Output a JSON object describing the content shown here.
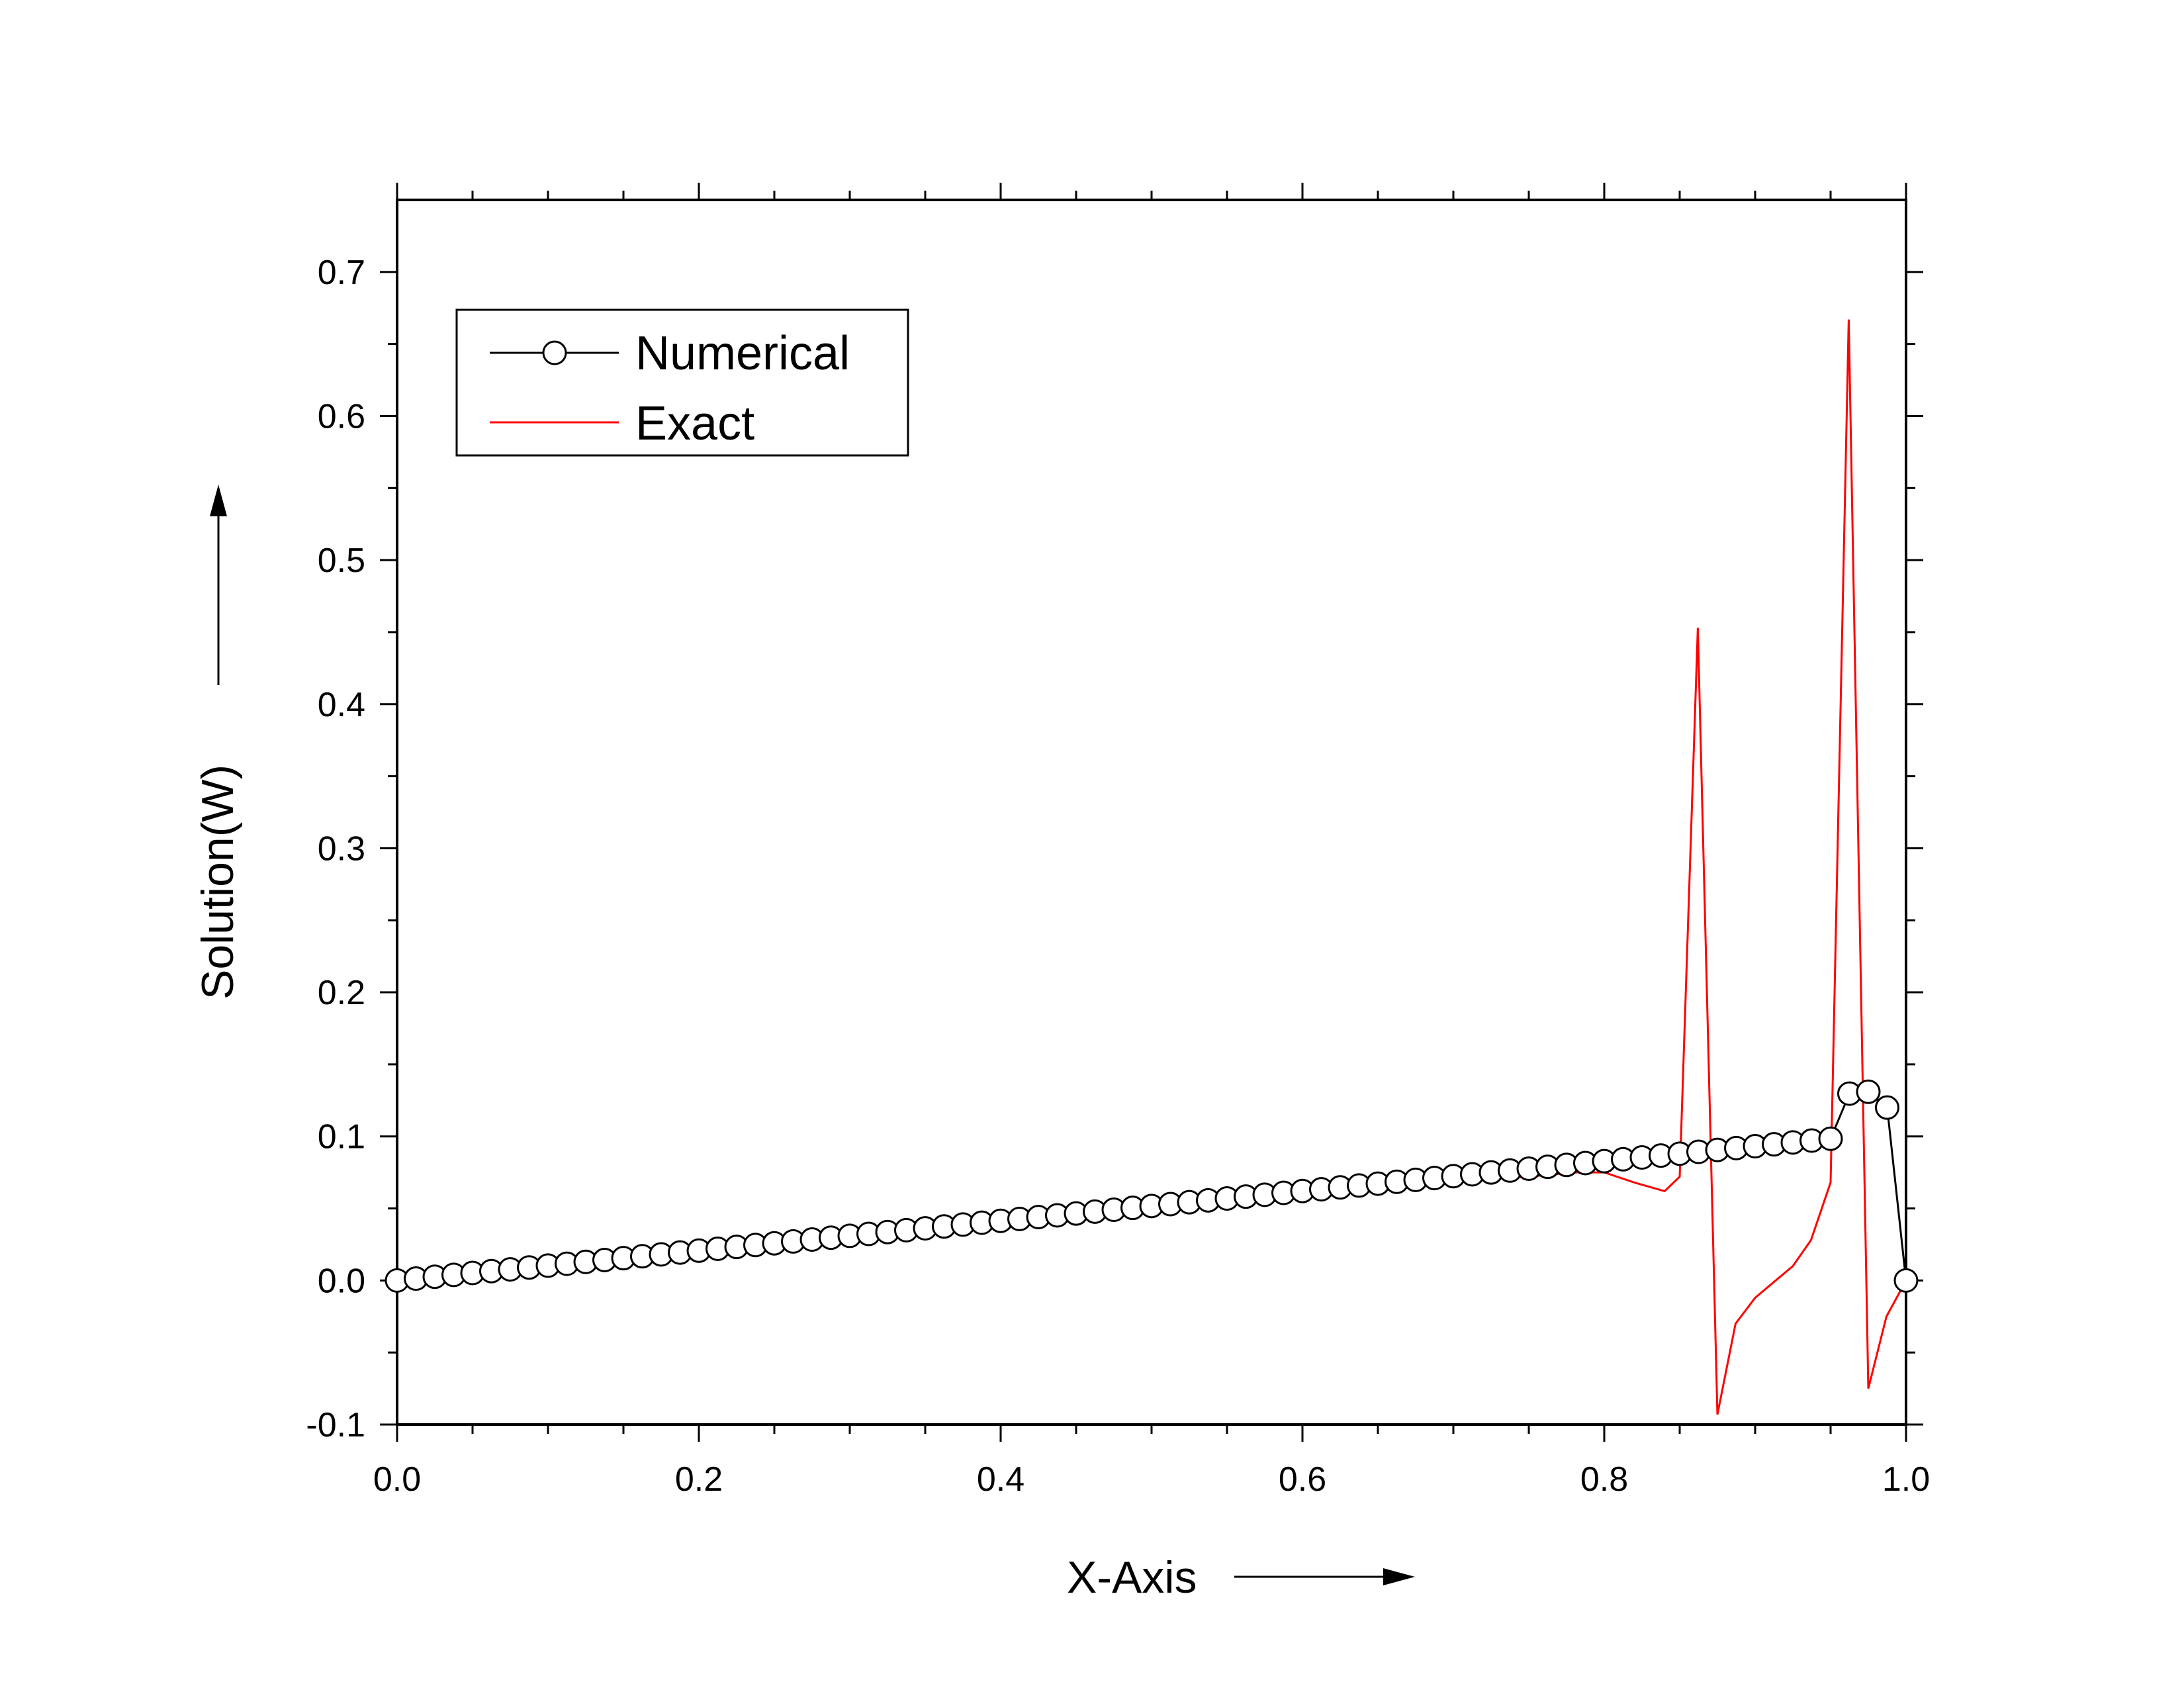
{
  "chart_data": {
    "type": "line",
    "title": "",
    "xlabel": "X-Axis",
    "ylabel": "Solution(W)",
    "xlim": [
      0.0,
      1.0
    ],
    "ylim": [
      -0.1,
      0.75
    ],
    "x_ticks": [
      "0.0",
      "0.2",
      "0.4",
      "0.6",
      "0.8",
      "1.0"
    ],
    "y_ticks": [
      "-0.1",
      "0.0",
      "0.1",
      "0.2",
      "0.3",
      "0.4",
      "0.5",
      "0.6",
      "0.7"
    ],
    "grid": false,
    "legend_position": "top-left",
    "series": [
      {
        "name": "Numerical",
        "color": "#000000",
        "marker": "open-circle",
        "x": [
          0.0,
          0.0125,
          0.025,
          0.0375,
          0.05,
          0.0625,
          0.075,
          0.0875,
          0.1,
          0.1125,
          0.125,
          0.1375,
          0.15,
          0.1625,
          0.175,
          0.1875,
          0.2,
          0.2125,
          0.225,
          0.2375,
          0.25,
          0.2625,
          0.275,
          0.2875,
          0.3,
          0.3125,
          0.325,
          0.3375,
          0.35,
          0.3625,
          0.375,
          0.3875,
          0.4,
          0.4125,
          0.425,
          0.4375,
          0.45,
          0.4625,
          0.475,
          0.4875,
          0.5,
          0.5125,
          0.525,
          0.5375,
          0.55,
          0.5625,
          0.575,
          0.5875,
          0.6,
          0.6125,
          0.625,
          0.6375,
          0.65,
          0.6625,
          0.675,
          0.6875,
          0.7,
          0.7125,
          0.725,
          0.7375,
          0.75,
          0.7625,
          0.775,
          0.7875,
          0.8,
          0.8125,
          0.825,
          0.8375,
          0.85,
          0.8625,
          0.875,
          0.8875,
          0.9,
          0.9125,
          0.925,
          0.9375,
          0.95,
          0.9625,
          0.975,
          0.9875,
          1.0
        ],
        "y": [
          0.0,
          0.0013,
          0.0026,
          0.0039,
          0.0052,
          0.0065,
          0.0077,
          0.009,
          0.0103,
          0.0116,
          0.0129,
          0.0142,
          0.0155,
          0.0168,
          0.0181,
          0.0194,
          0.0207,
          0.022,
          0.0233,
          0.0246,
          0.0258,
          0.0271,
          0.0284,
          0.0297,
          0.031,
          0.0323,
          0.0336,
          0.0349,
          0.0362,
          0.0375,
          0.0388,
          0.0401,
          0.0414,
          0.0427,
          0.044,
          0.0452,
          0.0465,
          0.0478,
          0.0491,
          0.0504,
          0.0517,
          0.053,
          0.0543,
          0.0556,
          0.0569,
          0.0582,
          0.0595,
          0.0608,
          0.0621,
          0.0633,
          0.0646,
          0.0659,
          0.0672,
          0.0685,
          0.0698,
          0.0711,
          0.0724,
          0.0737,
          0.075,
          0.0763,
          0.0776,
          0.0789,
          0.0802,
          0.0815,
          0.0828,
          0.0841,
          0.0854,
          0.0867,
          0.088,
          0.0893,
          0.0906,
          0.0919,
          0.0932,
          0.0945,
          0.0958,
          0.0971,
          0.0984,
          0.1297,
          0.131,
          0.12,
          0.0
        ]
      },
      {
        "name": "Exact",
        "color": "#ff0000",
        "marker": "none",
        "x": [
          0.0,
          0.05,
          0.1,
          0.2,
          0.3,
          0.4,
          0.5,
          0.6,
          0.7,
          0.75,
          0.78,
          0.8,
          0.82,
          0.84,
          0.85,
          0.862,
          0.875,
          0.887,
          0.9,
          0.925,
          0.937,
          0.95,
          0.962,
          0.975,
          0.987,
          1.0
        ],
        "y": [
          0.0,
          0.0052,
          0.0103,
          0.0207,
          0.031,
          0.0414,
          0.0517,
          0.0621,
          0.0695,
          0.072,
          0.075,
          0.075,
          0.068,
          0.062,
          0.072,
          0.453,
          -0.093,
          -0.03,
          -0.012,
          0.01,
          0.028,
          0.068,
          0.667,
          -0.075,
          -0.025,
          0.0
        ]
      }
    ]
  }
}
